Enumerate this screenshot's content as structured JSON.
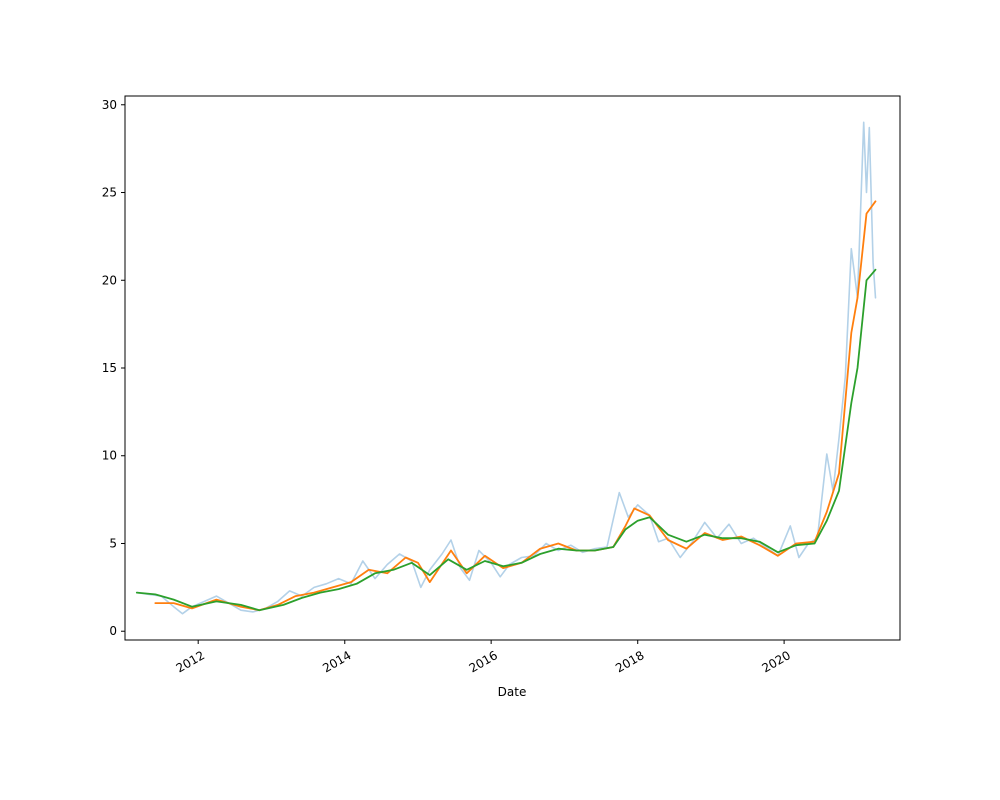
{
  "chart_data": {
    "type": "line",
    "title": "",
    "xlabel": "Date",
    "ylabel": "",
    "x_axis": {
      "type": "date",
      "min": "2011-01-01",
      "max": "2021-08-01",
      "ticks": [
        "2012-01-01",
        "2014-01-01",
        "2016-01-01",
        "2018-01-01",
        "2020-01-01"
      ],
      "tick_labels": [
        "2012",
        "2014",
        "2016",
        "2018",
        "2020"
      ]
    },
    "y_axis": {
      "min": -0.5,
      "max": 30.5,
      "ticks": [
        0,
        5,
        10,
        15,
        20,
        25,
        30
      ],
      "tick_labels": [
        "0",
        "5",
        "10",
        "15",
        "20",
        "25",
        "30"
      ]
    },
    "grid": false,
    "legend": "none",
    "series": [
      {
        "color": "#b3d1e8",
        "style": "price",
        "points": [
          [
            "2011-03-01",
            2.2
          ],
          [
            "2011-05-01",
            2.1
          ],
          [
            "2011-07-01",
            2.0
          ],
          [
            "2011-09-01",
            1.4
          ],
          [
            "2011-10-15",
            1.0
          ],
          [
            "2011-12-01",
            1.4
          ],
          [
            "2012-02-01",
            1.7
          ],
          [
            "2012-04-01",
            2.0
          ],
          [
            "2012-06-01",
            1.6
          ],
          [
            "2012-08-01",
            1.2
          ],
          [
            "2012-10-01",
            1.1
          ],
          [
            "2012-12-01",
            1.3
          ],
          [
            "2013-02-01",
            1.7
          ],
          [
            "2013-04-01",
            2.3
          ],
          [
            "2013-06-01",
            2.0
          ],
          [
            "2013-08-01",
            2.5
          ],
          [
            "2013-10-01",
            2.7
          ],
          [
            "2013-12-01",
            3.0
          ],
          [
            "2014-02-01",
            2.7
          ],
          [
            "2014-04-01",
            4.0
          ],
          [
            "2014-06-01",
            3.0
          ],
          [
            "2014-08-01",
            3.8
          ],
          [
            "2014-10-01",
            4.4
          ],
          [
            "2014-12-01",
            4.0
          ],
          [
            "2015-01-15",
            2.5
          ],
          [
            "2015-03-01",
            3.5
          ],
          [
            "2015-05-01",
            4.4
          ],
          [
            "2015-06-15",
            5.2
          ],
          [
            "2015-08-01",
            3.6
          ],
          [
            "2015-09-15",
            2.9
          ],
          [
            "2015-11-01",
            4.6
          ],
          [
            "2016-01-01",
            3.9
          ],
          [
            "2016-02-15",
            3.1
          ],
          [
            "2016-04-01",
            3.8
          ],
          [
            "2016-06-01",
            4.2
          ],
          [
            "2016-08-01",
            4.3
          ],
          [
            "2016-10-01",
            5.0
          ],
          [
            "2016-12-01",
            4.6
          ],
          [
            "2017-02-01",
            4.9
          ],
          [
            "2017-04-01",
            4.5
          ],
          [
            "2017-06-01",
            4.7
          ],
          [
            "2017-08-01",
            4.8
          ],
          [
            "2017-10-01",
            7.9
          ],
          [
            "2017-11-15",
            6.5
          ],
          [
            "2018-01-01",
            7.2
          ],
          [
            "2018-03-01",
            6.6
          ],
          [
            "2018-04-15",
            5.1
          ],
          [
            "2018-06-01",
            5.3
          ],
          [
            "2018-08-01",
            4.2
          ],
          [
            "2018-10-01",
            5.1
          ],
          [
            "2018-12-01",
            6.2
          ],
          [
            "2019-02-01",
            5.3
          ],
          [
            "2019-04-01",
            6.1
          ],
          [
            "2019-06-01",
            5.0
          ],
          [
            "2019-08-01",
            5.3
          ],
          [
            "2019-10-01",
            4.8
          ],
          [
            "2019-12-01",
            4.3
          ],
          [
            "2020-02-01",
            6.0
          ],
          [
            "2020-03-15",
            4.2
          ],
          [
            "2020-05-01",
            5.0
          ],
          [
            "2020-06-15",
            5.3
          ],
          [
            "2020-08-01",
            10.1
          ],
          [
            "2020-09-01",
            8.0
          ],
          [
            "2020-10-01",
            11.0
          ],
          [
            "2020-11-01",
            14.5
          ],
          [
            "2020-12-01",
            21.8
          ],
          [
            "2021-01-01",
            19.0
          ],
          [
            "2021-02-01",
            29.0
          ],
          [
            "2021-02-15",
            25.0
          ],
          [
            "2021-03-01",
            28.7
          ],
          [
            "2021-03-20",
            21.0
          ],
          [
            "2021-04-01",
            19.0
          ]
        ]
      },
      {
        "color": "#ff7f0e",
        "style": "line",
        "points": [
          [
            "2011-06-01",
            1.6
          ],
          [
            "2011-09-01",
            1.6
          ],
          [
            "2011-12-01",
            1.3
          ],
          [
            "2012-04-01",
            1.8
          ],
          [
            "2012-08-01",
            1.4
          ],
          [
            "2012-11-01",
            1.2
          ],
          [
            "2013-02-01",
            1.5
          ],
          [
            "2013-05-01",
            2.0
          ],
          [
            "2013-08-01",
            2.2
          ],
          [
            "2013-11-01",
            2.5
          ],
          [
            "2014-02-01",
            2.8
          ],
          [
            "2014-05-01",
            3.5
          ],
          [
            "2014-08-01",
            3.3
          ],
          [
            "2014-11-01",
            4.2
          ],
          [
            "2015-01-01",
            3.9
          ],
          [
            "2015-03-01",
            2.8
          ],
          [
            "2015-06-15",
            4.6
          ],
          [
            "2015-09-01",
            3.3
          ],
          [
            "2015-12-01",
            4.3
          ],
          [
            "2016-03-01",
            3.6
          ],
          [
            "2016-06-01",
            3.9
          ],
          [
            "2016-09-01",
            4.7
          ],
          [
            "2016-12-01",
            5.0
          ],
          [
            "2017-03-01",
            4.6
          ],
          [
            "2017-06-01",
            4.6
          ],
          [
            "2017-09-01",
            4.8
          ],
          [
            "2017-11-01",
            6.0
          ],
          [
            "2017-12-15",
            7.0
          ],
          [
            "2018-03-01",
            6.6
          ],
          [
            "2018-06-01",
            5.2
          ],
          [
            "2018-09-01",
            4.7
          ],
          [
            "2018-12-01",
            5.6
          ],
          [
            "2019-03-01",
            5.2
          ],
          [
            "2019-06-01",
            5.4
          ],
          [
            "2019-09-01",
            4.9
          ],
          [
            "2019-12-01",
            4.3
          ],
          [
            "2020-03-01",
            5.0
          ],
          [
            "2020-06-01",
            5.1
          ],
          [
            "2020-08-01",
            6.8
          ],
          [
            "2020-10-01",
            9.0
          ],
          [
            "2020-12-01",
            17.0
          ],
          [
            "2021-01-01",
            19.0
          ],
          [
            "2021-02-15",
            23.8
          ],
          [
            "2021-04-01",
            24.5
          ]
        ]
      },
      {
        "color": "#2ca02c",
        "style": "line",
        "points": [
          [
            "2011-03-01",
            2.2
          ],
          [
            "2011-06-01",
            2.1
          ],
          [
            "2011-09-01",
            1.8
          ],
          [
            "2011-12-01",
            1.4
          ],
          [
            "2012-04-01",
            1.7
          ],
          [
            "2012-08-01",
            1.5
          ],
          [
            "2012-11-01",
            1.2
          ],
          [
            "2013-03-01",
            1.5
          ],
          [
            "2013-06-01",
            1.9
          ],
          [
            "2013-09-01",
            2.2
          ],
          [
            "2013-12-01",
            2.4
          ],
          [
            "2014-03-01",
            2.7
          ],
          [
            "2014-06-01",
            3.3
          ],
          [
            "2014-09-01",
            3.5
          ],
          [
            "2014-12-01",
            3.9
          ],
          [
            "2015-03-01",
            3.2
          ],
          [
            "2015-06-01",
            4.1
          ],
          [
            "2015-09-01",
            3.5
          ],
          [
            "2015-12-01",
            4.0
          ],
          [
            "2016-03-01",
            3.7
          ],
          [
            "2016-06-01",
            3.9
          ],
          [
            "2016-09-01",
            4.4
          ],
          [
            "2016-12-01",
            4.7
          ],
          [
            "2017-03-01",
            4.6
          ],
          [
            "2017-06-01",
            4.6
          ],
          [
            "2017-09-01",
            4.8
          ],
          [
            "2017-11-01",
            5.8
          ],
          [
            "2018-01-01",
            6.3
          ],
          [
            "2018-03-01",
            6.5
          ],
          [
            "2018-06-01",
            5.5
          ],
          [
            "2018-09-01",
            5.1
          ],
          [
            "2018-12-01",
            5.5
          ],
          [
            "2019-03-01",
            5.3
          ],
          [
            "2019-06-01",
            5.3
          ],
          [
            "2019-09-01",
            5.1
          ],
          [
            "2019-12-01",
            4.5
          ],
          [
            "2020-03-01",
            4.9
          ],
          [
            "2020-06-01",
            5.0
          ],
          [
            "2020-08-01",
            6.3
          ],
          [
            "2020-10-01",
            8.0
          ],
          [
            "2020-12-01",
            13.0
          ],
          [
            "2021-01-01",
            15.0
          ],
          [
            "2021-02-15",
            20.0
          ],
          [
            "2021-04-01",
            20.6
          ]
        ]
      }
    ]
  }
}
